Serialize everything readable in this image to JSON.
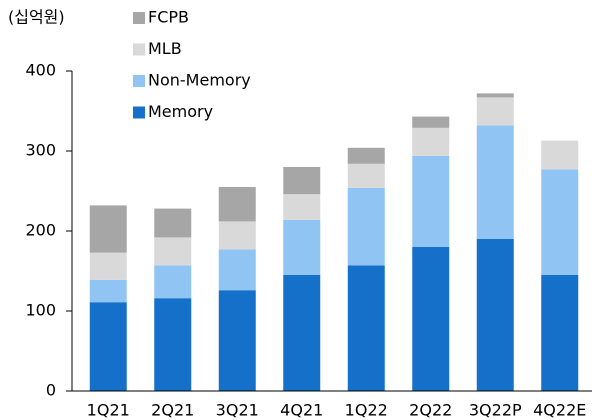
{
  "chart_data": {
    "type": "bar",
    "stacked": true,
    "y_label": "(십억원)",
    "categories": [
      "1Q21",
      "2Q21",
      "3Q21",
      "4Q21",
      "1Q22",
      "2Q22",
      "3Q22P",
      "4Q22E"
    ],
    "series": [
      {
        "name": "Memory",
        "color": "#1470c8",
        "values": [
          111,
          116,
          126,
          145,
          157,
          180,
          190,
          145
        ]
      },
      {
        "name": "Non-Memory",
        "color": "#90c4f2",
        "values": [
          28,
          41,
          51,
          69,
          97,
          114,
          142,
          132
        ]
      },
      {
        "name": "MLB",
        "color": "#d9d9d9",
        "values": [
          34,
          35,
          35,
          32,
          30,
          35,
          35,
          36
        ]
      },
      {
        "name": "FCPB",
        "color": "#a6a6a6",
        "values": [
          59,
          36,
          43,
          34,
          20,
          14,
          5,
          0
        ]
      }
    ],
    "ylim": [
      0,
      400
    ],
    "yticks": [
      0,
      100,
      200,
      300,
      400
    ],
    "grid": false,
    "legend": "top-left"
  }
}
